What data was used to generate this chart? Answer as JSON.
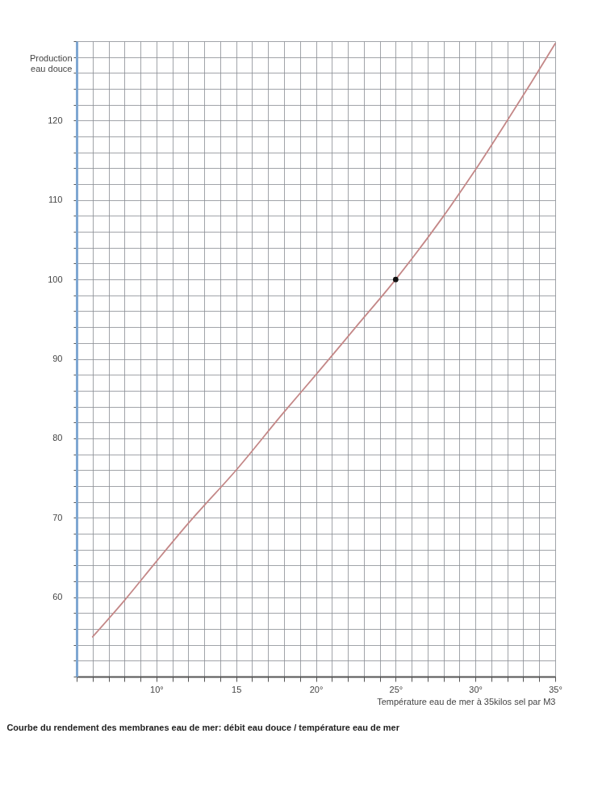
{
  "chart_data": {
    "type": "line",
    "title": "Courbe du rendement des membranes eau de mer:   débit eau douce / température eau de mer",
    "xlabel": "Température eau de mer à 35kilos sel par M3",
    "ylabel": "Production\neau douce",
    "series": [
      {
        "color": "#c48888",
        "x": [
          6,
          8,
          10,
          12,
          15,
          18,
          20,
          22.5,
          25,
          27.9,
          30,
          31.9,
          33.5,
          35
        ],
        "values": [
          55,
          59.6,
          64.5,
          69.3,
          76,
          83.3,
          88,
          94,
          100,
          107.7,
          113.8,
          119.7,
          124.8,
          129.7
        ]
      },
      {
        "type": "scatter",
        "color": "#111111",
        "marker": "circle",
        "x": [
          25
        ],
        "values": [
          100
        ]
      }
    ],
    "xlim": [
      5,
      35
    ],
    "ylim": [
      50,
      130
    ],
    "xticks": [
      {
        "value": 5,
        "label": null
      },
      {
        "value": 6,
        "label": null
      },
      {
        "value": 7,
        "label": null
      },
      {
        "value": 8,
        "label": null
      },
      {
        "value": 9,
        "label": null
      },
      {
        "value": 10,
        "label": "10°"
      },
      {
        "value": 11,
        "label": null
      },
      {
        "value": 12,
        "label": null
      },
      {
        "value": 13,
        "label": null
      },
      {
        "value": 14,
        "label": null
      },
      15,
      {
        "value": 16,
        "label": null
      },
      {
        "value": 17,
        "label": null
      },
      {
        "value": 18,
        "label": null
      },
      {
        "value": 19,
        "label": null
      },
      {
        "value": 20,
        "label": "20°"
      },
      {
        "value": 21,
        "label": null
      },
      {
        "value": 22,
        "label": null
      },
      {
        "value": 23,
        "label": null
      },
      {
        "value": 24,
        "label": null
      },
      {
        "value": 25,
        "label": "25°"
      },
      {
        "value": 26,
        "label": null
      },
      {
        "value": 27,
        "label": null
      },
      {
        "value": 28,
        "label": null
      },
      {
        "value": 29,
        "label": null
      },
      {
        "value": 30,
        "label": "30°"
      },
      {
        "value": 31,
        "label": null
      },
      {
        "value": 32,
        "label": null
      },
      {
        "value": 33,
        "label": null
      },
      {
        "value": 34,
        "label": null
      },
      {
        "value": 35,
        "label": "35°"
      }
    ],
    "yticks": [
      {
        "value": 50,
        "label": null
      },
      {
        "value": 52,
        "label": null
      },
      {
        "value": 54,
        "label": null
      },
      {
        "value": 56,
        "label": null
      },
      {
        "value": 58,
        "label": null
      },
      60,
      {
        "value": 62,
        "label": null
      },
      {
        "value": 64,
        "label": null
      },
      {
        "value": 66,
        "label": null
      },
      {
        "value": 68,
        "label": null
      },
      70,
      {
        "value": 72,
        "label": null
      },
      {
        "value": 74,
        "label": null
      },
      {
        "value": 76,
        "label": null
      },
      {
        "value": 78,
        "label": null
      },
      80,
      {
        "value": 82,
        "label": null
      },
      {
        "value": 84,
        "label": null
      },
      {
        "value": 86,
        "label": null
      },
      {
        "value": 88,
        "label": null
      },
      90,
      {
        "value": 92,
        "label": null
      },
      {
        "value": 94,
        "label": null
      },
      {
        "value": 96,
        "label": null
      },
      {
        "value": 98,
        "label": null
      },
      100,
      {
        "value": 102,
        "label": null
      },
      {
        "value": 104,
        "label": null
      },
      {
        "value": 106,
        "label": null
      },
      {
        "value": 108,
        "label": null
      },
      110,
      {
        "value": 112,
        "label": null
      },
      {
        "value": 114,
        "label": null
      },
      {
        "value": 116,
        "label": null
      },
      {
        "value": 118,
        "label": null
      },
      120,
      {
        "value": 122,
        "label": null
      },
      {
        "value": 124,
        "label": null
      },
      {
        "value": 126,
        "label": null
      },
      {
        "value": 128,
        "label": null
      },
      {
        "value": 130,
        "label": null
      }
    ],
    "grid": true
  }
}
